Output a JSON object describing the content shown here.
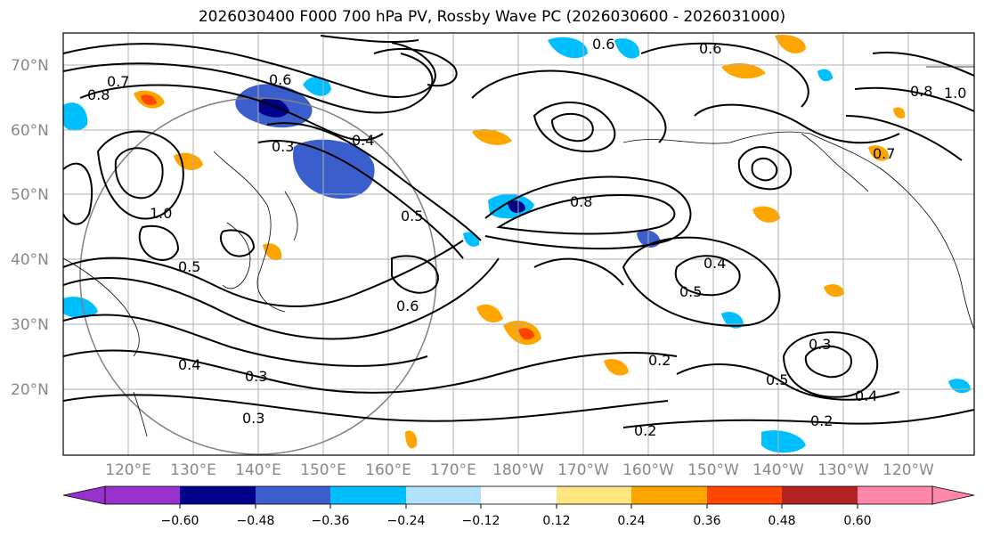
{
  "title": "2026030400 F000 700 hPa PV, Rossby Wave PC (2026030600 - 2026031000)",
  "map": {
    "lat_labels": [
      "70°N",
      "60°N",
      "50°N",
      "40°N",
      "30°N",
      "20°N"
    ],
    "lon_labels": [
      "120°E",
      "130°E",
      "140°E",
      "150°E",
      "160°E",
      "170°E",
      "180°W",
      "170°W",
      "160°W",
      "150°W",
      "140°W",
      "130°W",
      "120°W"
    ],
    "contour_labels": [
      "0.3",
      "0.4",
      "0.5",
      "0.6",
      "0.7",
      "0.8",
      "1.0",
      "0.6",
      "0.5",
      "0.4",
      "0.3",
      "0.2",
      "0.8",
      "0.6",
      "0.5",
      "0.4",
      "0.3",
      "0.2",
      "1.0",
      "0.8",
      "0.7",
      "0.6",
      "0.5",
      "0.4",
      "0.3",
      "0.2"
    ]
  },
  "colorbar": {
    "tick_labels": [
      "−0.60",
      "−0.48",
      "−0.36",
      "−0.24",
      "−0.12",
      "0.12",
      "0.24",
      "0.36",
      "0.48",
      "0.60"
    ],
    "colors": [
      "#9932cc",
      "#00008b",
      "#3a5fcd",
      "#00bfff",
      "#b0e2ff",
      "#ffffff",
      "#ffe680",
      "#ffa500",
      "#ff4500",
      "#b22222",
      "#ff88aa"
    ]
  }
}
